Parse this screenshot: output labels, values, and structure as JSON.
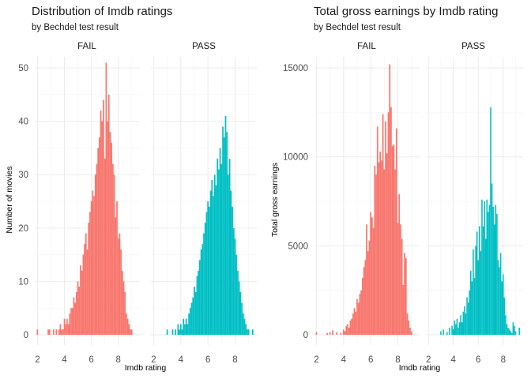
{
  "colors": {
    "fail": "#F8766D",
    "pass": "#00BFC4"
  },
  "chart_data": [
    {
      "type": "bar",
      "title": "Distribution of Imdb ratings",
      "subtitle": "by Bechdel test result",
      "xlabel": "Imdb rating",
      "ylabel": "Number of movies",
      "facets": [
        "FAIL",
        "PASS"
      ],
      "xlim": [
        1.8,
        9.6
      ],
      "ylim": [
        0,
        54
      ],
      "x_ticks": [
        2,
        4,
        6,
        8
      ],
      "y_ticks": [
        0,
        10,
        20,
        30,
        40,
        50
      ],
      "bin_width": 0.1,
      "series": [
        {
          "facet": "FAIL",
          "color_key": "fail",
          "x": [
            2.0,
            2.8,
            2.9,
            3.2,
            3.4,
            3.6,
            3.7,
            3.8,
            3.9,
            4.0,
            4.1,
            4.2,
            4.3,
            4.4,
            4.5,
            4.6,
            4.7,
            4.8,
            4.9,
            5.0,
            5.1,
            5.2,
            5.3,
            5.4,
            5.5,
            5.6,
            5.7,
            5.8,
            5.9,
            6.0,
            6.1,
            6.2,
            6.3,
            6.4,
            6.5,
            6.6,
            6.7,
            6.8,
            6.9,
            7.0,
            7.1,
            7.2,
            7.3,
            7.4,
            7.5,
            7.6,
            7.7,
            7.8,
            7.9,
            8.0,
            8.1,
            8.2,
            8.3,
            8.4,
            8.5,
            8.6,
            8.7,
            8.8,
            8.9,
            9.0
          ],
          "values": [
            1,
            1,
            1,
            1,
            1,
            1,
            2,
            1,
            1,
            3,
            2,
            3,
            2,
            4,
            5,
            5,
            7,
            6,
            8,
            10,
            9,
            13,
            12,
            15,
            17,
            19,
            16,
            21,
            23,
            25,
            27,
            26,
            30,
            32,
            35,
            37,
            42,
            40,
            44,
            33,
            51,
            40,
            45,
            38,
            36,
            32,
            30,
            22,
            25,
            18,
            19,
            16,
            12,
            10,
            8,
            4,
            3,
            2,
            1,
            1
          ]
        },
        {
          "facet": "PASS",
          "color_key": "pass",
          "x": [
            3.0,
            3.4,
            3.6,
            3.8,
            3.9,
            4.0,
            4.1,
            4.2,
            4.3,
            4.4,
            4.5,
            4.6,
            4.7,
            4.8,
            4.9,
            5.0,
            5.1,
            5.2,
            5.3,
            5.4,
            5.5,
            5.6,
            5.7,
            5.8,
            5.9,
            6.0,
            6.1,
            6.2,
            6.3,
            6.4,
            6.5,
            6.6,
            6.7,
            6.8,
            6.9,
            7.0,
            7.1,
            7.2,
            7.3,
            7.4,
            7.5,
            7.6,
            7.7,
            7.8,
            7.9,
            8.0,
            8.1,
            8.2,
            8.3,
            8.4,
            8.5,
            8.6,
            8.7,
            8.8,
            8.9,
            9.0,
            9.3
          ],
          "values": [
            1,
            1,
            1,
            2,
            1,
            2,
            1,
            3,
            2,
            3,
            2,
            4,
            5,
            6,
            7,
            9,
            8,
            11,
            12,
            14,
            16,
            17,
            19,
            21,
            23,
            25,
            24,
            27,
            29,
            26,
            30,
            28,
            33,
            31,
            35,
            32,
            39,
            37,
            41,
            38,
            30,
            33,
            27,
            24,
            20,
            18,
            15,
            12,
            10,
            8,
            6,
            4,
            3,
            2,
            1,
            1,
            1
          ]
        }
      ]
    },
    {
      "type": "bar",
      "title": "Total gross earnings by Imdb rating",
      "subtitle": "by Bechdel test result",
      "xlabel": "Imdb rating",
      "ylabel": "Total gross earnings",
      "facets": [
        "FAIL",
        "PASS"
      ],
      "xlim": [
        1.8,
        9.6
      ],
      "ylim": [
        0,
        16200
      ],
      "x_ticks": [
        2,
        4,
        6,
        8
      ],
      "y_ticks": [
        0,
        5000,
        10000,
        15000
      ],
      "bin_width": 0.1,
      "series": [
        {
          "facet": "FAIL",
          "color_key": "fail",
          "x": [
            2.0,
            2.8,
            3.0,
            3.2,
            3.5,
            3.8,
            4.0,
            4.1,
            4.2,
            4.3,
            4.4,
            4.5,
            4.6,
            4.7,
            4.8,
            4.9,
            5.0,
            5.1,
            5.2,
            5.3,
            5.4,
            5.5,
            5.6,
            5.7,
            5.8,
            5.9,
            6.0,
            6.1,
            6.2,
            6.3,
            6.4,
            6.5,
            6.6,
            6.7,
            6.8,
            6.9,
            7.0,
            7.1,
            7.2,
            7.3,
            7.4,
            7.5,
            7.6,
            7.7,
            7.8,
            7.9,
            8.0,
            8.1,
            8.2,
            8.3,
            8.4,
            8.5,
            8.6,
            8.7,
            8.8,
            8.9,
            9.0
          ],
          "values": [
            150,
            100,
            150,
            250,
            150,
            120,
            300,
            200,
            500,
            600,
            400,
            800,
            900,
            1200,
            1500,
            1300,
            2000,
            1800,
            2300,
            2500,
            3200,
            3800,
            4200,
            6200,
            4700,
            5300,
            6900,
            6600,
            6000,
            9500,
            9000,
            11700,
            9700,
            10300,
            9800,
            12400,
            9300,
            12000,
            10200,
            12500,
            15200,
            12800,
            10600,
            10700,
            9300,
            11600,
            6300,
            7900,
            6200,
            5400,
            2800,
            4600,
            4300,
            1200,
            800,
            400,
            200
          ]
        },
        {
          "facet": "PASS",
          "color_key": "pass",
          "x": [
            3.0,
            3.2,
            3.5,
            3.7,
            3.9,
            4.0,
            4.1,
            4.2,
            4.3,
            4.4,
            4.5,
            4.6,
            4.7,
            4.8,
            4.9,
            5.0,
            5.1,
            5.2,
            5.3,
            5.4,
            5.5,
            5.6,
            5.7,
            5.8,
            5.9,
            6.0,
            6.1,
            6.2,
            6.3,
            6.4,
            6.5,
            6.6,
            6.7,
            6.8,
            6.9,
            7.0,
            7.1,
            7.2,
            7.3,
            7.4,
            7.5,
            7.6,
            7.7,
            7.8,
            7.9,
            8.0,
            8.1,
            8.2,
            8.3,
            8.4,
            8.5,
            8.6,
            8.7,
            8.8,
            8.9,
            9.0,
            9.3
          ],
          "values": [
            200,
            300,
            150,
            400,
            500,
            300,
            800,
            600,
            900,
            400,
            700,
            1100,
            700,
            1300,
            1600,
            1200,
            2100,
            1800,
            2500,
            3600,
            3000,
            4800,
            3200,
            5000,
            5800,
            4200,
            6100,
            4700,
            7600,
            6100,
            7500,
            5400,
            7600,
            6900,
            7300,
            12800,
            8500,
            7200,
            6200,
            7300,
            6800,
            4200,
            3800,
            4600,
            3000,
            3400,
            2100,
            1100,
            600,
            400,
            300,
            200,
            100,
            700,
            500,
            200,
            400
          ]
        }
      ]
    }
  ]
}
